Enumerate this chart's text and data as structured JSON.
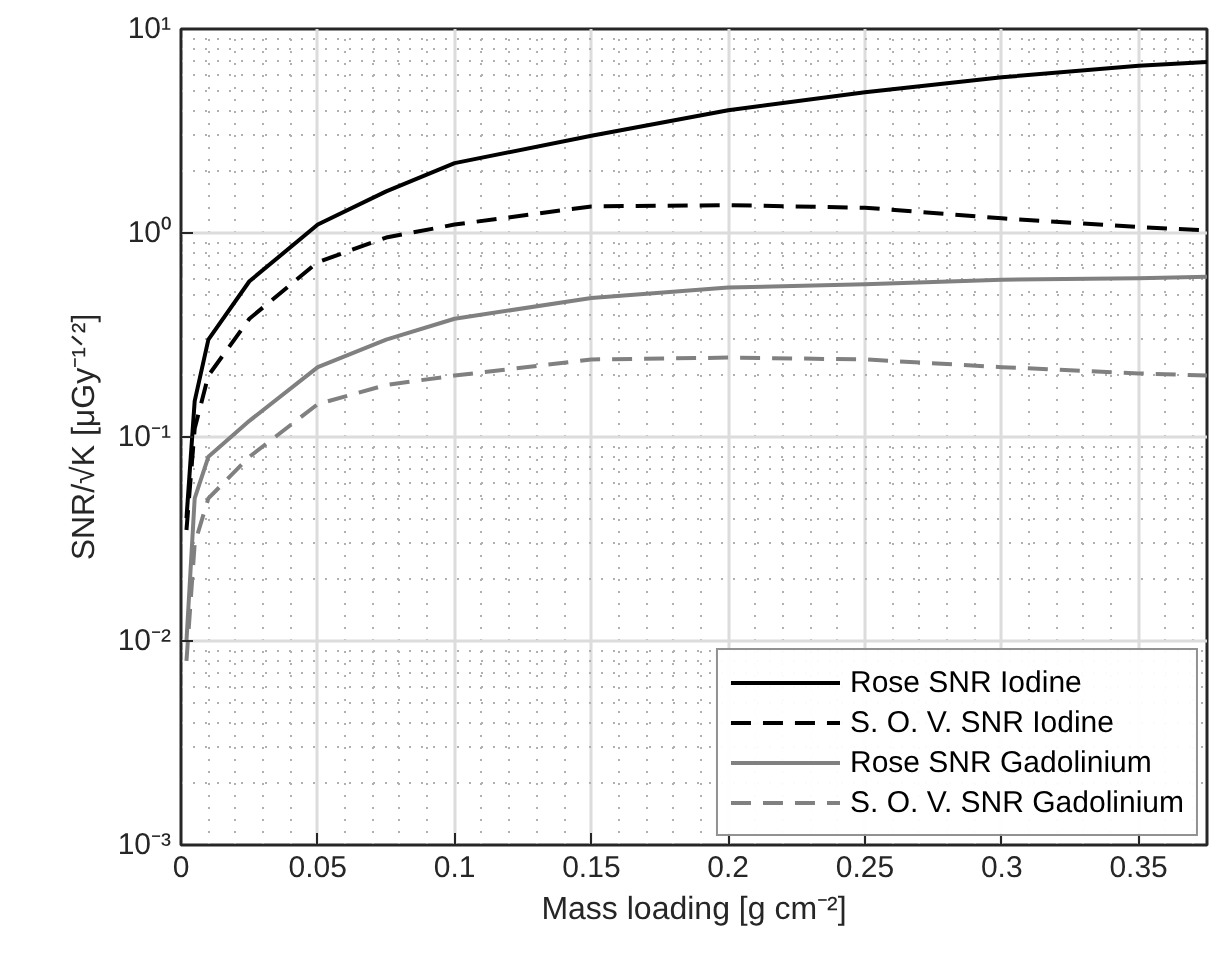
{
  "chart_data": {
    "type": "line",
    "xlabel": "Mass loading [g cm⁻²]",
    "ylabel": "SNR/√K [μGy⁻¹ᐟ²]",
    "x": [
      0.002,
      0.005,
      0.01,
      0.025,
      0.05,
      0.075,
      0.1,
      0.15,
      0.2,
      0.25,
      0.3,
      0.35,
      0.375
    ],
    "series": [
      {
        "name": "Rose SNR Iodine",
        "color": "#000000",
        "line_style": "solid",
        "values": [
          0.04,
          0.15,
          0.3,
          0.58,
          1.1,
          1.6,
          2.2,
          3.0,
          4.0,
          4.9,
          5.8,
          6.6,
          6.9
        ]
      },
      {
        "name": "S. O. V. SNR Iodine",
        "color": "#000000",
        "line_style": "dashed",
        "values": [
          0.035,
          0.11,
          0.2,
          0.38,
          0.72,
          0.95,
          1.1,
          1.35,
          1.37,
          1.33,
          1.18,
          1.07,
          1.03
        ]
      },
      {
        "name": "Rose SNR Gadolinium",
        "color": "#808080",
        "line_style": "solid",
        "values": [
          0.01,
          0.05,
          0.08,
          0.12,
          0.22,
          0.3,
          0.38,
          0.48,
          0.54,
          0.56,
          0.59,
          0.6,
          0.61
        ]
      },
      {
        "name": "S. O. V. SNR Gadolinium",
        "color": "#808080",
        "line_style": "dashed",
        "values": [
          0.008,
          0.03,
          0.05,
          0.08,
          0.145,
          0.18,
          0.2,
          0.24,
          0.245,
          0.24,
          0.22,
          0.205,
          0.2
        ]
      }
    ],
    "log": "y",
    "xlim": [
      0,
      0.375
    ],
    "ylim": [
      0.001,
      10
    ],
    "xticks": [
      0,
      0.05,
      0.1,
      0.15,
      0.2,
      0.25,
      0.3,
      0.35
    ],
    "yticks": [
      {
        "value": 0.001,
        "label": "10⁻³"
      },
      {
        "value": 0.01,
        "label": "10⁻²"
      },
      {
        "value": 0.1,
        "label": "10⁻¹"
      },
      {
        "value": 1,
        "label": "10⁰"
      },
      {
        "value": 10,
        "label": "10¹"
      }
    ],
    "grid": true,
    "legend": "bottom right"
  }
}
